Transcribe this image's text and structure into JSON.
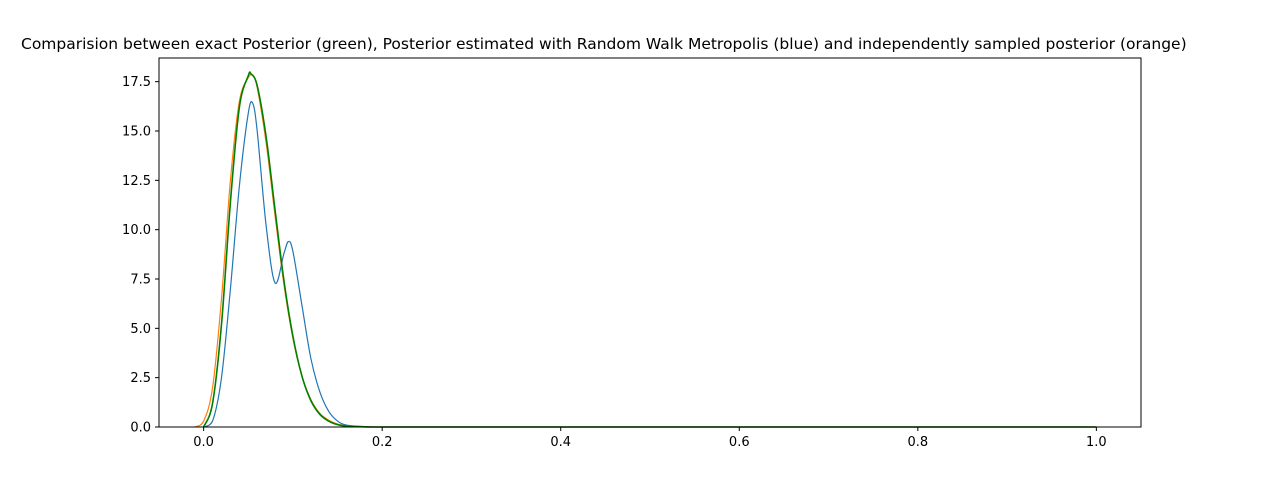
{
  "chart_data": {
    "type": "line",
    "title": "Comparision between exact Posterior (green), Posterior estimated with Random Walk Metropolis (blue) and independently sampled posterior (orange)",
    "xlabel": "",
    "ylabel": "",
    "xlim": [
      -0.05,
      1.05
    ],
    "ylim": [
      0,
      18.7
    ],
    "xticks": [
      0.0,
      0.2,
      0.4,
      0.6,
      0.8,
      1.0
    ],
    "xtick_labels": [
      "0.0",
      "0.2",
      "0.4",
      "0.6",
      "0.8",
      "1.0"
    ],
    "yticks": [
      0.0,
      2.5,
      5.0,
      7.5,
      10.0,
      12.5,
      15.0,
      17.5
    ],
    "ytick_labels": [
      "0.0",
      "2.5",
      "5.0",
      "7.5",
      "10.0",
      "12.5",
      "15.0",
      "17.5"
    ],
    "grid": false,
    "legend": "none",
    "series": [
      {
        "color": "#1f77b4",
        "x": [
          0.0,
          0.01,
          0.02,
          0.03,
          0.04,
          0.05,
          0.055,
          0.06,
          0.07,
          0.08,
          0.09,
          0.095,
          0.1,
          0.11,
          0.12,
          0.13,
          0.14,
          0.15,
          0.16,
          0.18,
          0.2,
          0.3,
          0.4,
          0.6,
          0.8,
          1.0
        ],
        "y": [
          0.0,
          0.3,
          2.5,
          7.0,
          12.2,
          15.9,
          16.4,
          15.0,
          10.2,
          7.3,
          8.8,
          9.4,
          8.9,
          6.2,
          3.5,
          1.8,
          0.8,
          0.3,
          0.1,
          0.02,
          0.0,
          0.0,
          0.0,
          0.0,
          0.0,
          0.0
        ]
      },
      {
        "color": "#ff7f0e",
        "x": [
          -0.01,
          0.0,
          0.01,
          0.02,
          0.03,
          0.04,
          0.05,
          0.055,
          0.06,
          0.07,
          0.08,
          0.09,
          0.1,
          0.11,
          0.12,
          0.13,
          0.14,
          0.15,
          0.16,
          0.18,
          0.2,
          0.3,
          0.4,
          0.6,
          0.8,
          1.0
        ],
        "y": [
          0.0,
          0.3,
          2.0,
          6.5,
          12.5,
          16.5,
          17.7,
          17.8,
          17.2,
          14.4,
          10.7,
          7.2,
          4.5,
          2.6,
          1.4,
          0.7,
          0.35,
          0.15,
          0.06,
          0.01,
          0.0,
          0.0,
          0.0,
          0.0,
          0.0,
          0.0
        ]
      },
      {
        "color": "#008000",
        "x": [
          0.0,
          0.01,
          0.02,
          0.03,
          0.04,
          0.05,
          0.053,
          0.06,
          0.07,
          0.08,
          0.09,
          0.1,
          0.11,
          0.12,
          0.13,
          0.14,
          0.15,
          0.16,
          0.18,
          0.2,
          0.3,
          0.4,
          0.6,
          0.8,
          1.0
        ],
        "y": [
          0.0,
          1.2,
          5.2,
          11.4,
          16.2,
          17.8,
          17.9,
          17.3,
          14.7,
          11.0,
          7.4,
          4.6,
          2.6,
          1.35,
          0.65,
          0.3,
          0.12,
          0.05,
          0.01,
          0.0,
          0.0,
          0.0,
          0.0,
          0.0,
          0.0
        ]
      }
    ]
  }
}
